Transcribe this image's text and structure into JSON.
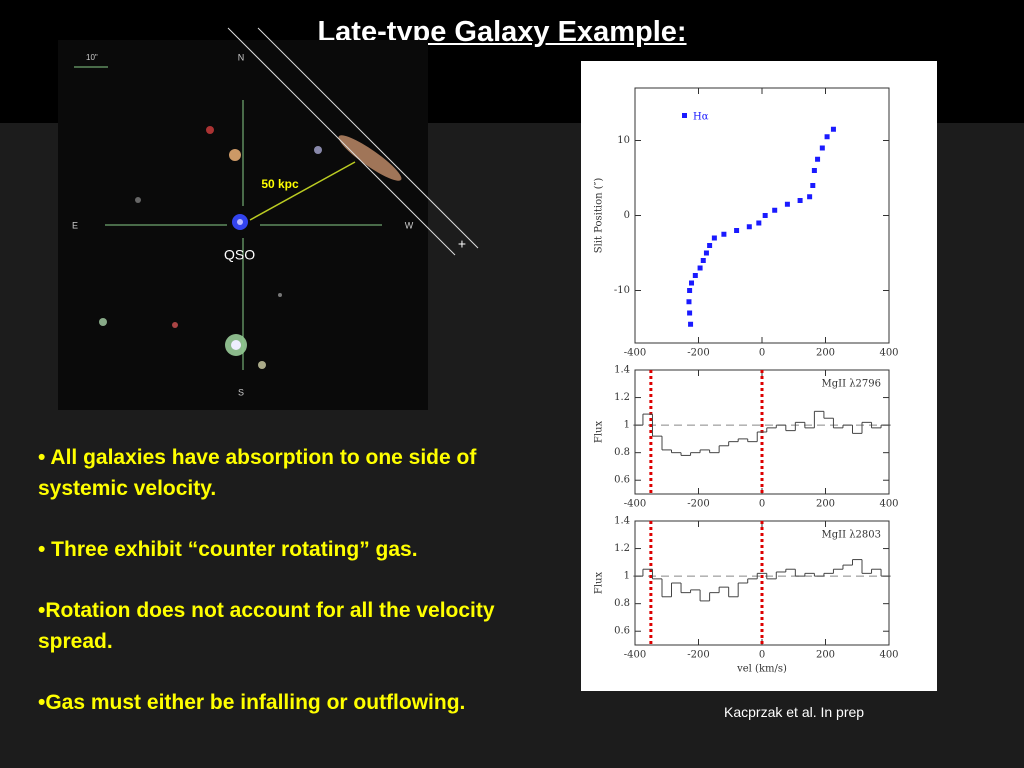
{
  "slide": {
    "title": "Late-type Galaxy Example:",
    "bullets": [
      "• All galaxies have absorption to one side of systemic velocity.",
      "• Three exhibit “counter rotating” gas.",
      "•Rotation does not account for all the velocity spread.",
      "•Gas must either be infalling or outflowing."
    ],
    "credit": "Kacprzak et al.  In prep"
  },
  "image": {
    "scale_label": "10\"",
    "north": "N",
    "east": "E",
    "west": "W",
    "south": "S",
    "distance_label": "50 kpc",
    "qso_label": "QSO"
  },
  "chart_data": [
    {
      "type": "scatter",
      "ylabel": "Slit Position (″)",
      "xlim": [
        -400,
        400
      ],
      "ylim": [
        -17,
        17
      ],
      "xticks": [
        -400,
        -200,
        0,
        200,
        400
      ],
      "yticks": [
        -10,
        0,
        10
      ],
      "series": [
        {
          "name": "Hα",
          "color": "#1a1aff",
          "x": [
            -225,
            -228,
            -230,
            -228,
            -222,
            -210,
            -195,
            -185,
            -175,
            -165,
            -150,
            -120,
            -80,
            -40,
            -10,
            10,
            40,
            80,
            120,
            150,
            160,
            165,
            175,
            190,
            205,
            225
          ],
          "values": [
            -14.5,
            -13,
            -11.5,
            -10,
            -9,
            -8,
            -7,
            -6,
            -5,
            -4,
            -3,
            -2.5,
            -2,
            -1.5,
            -1,
            0,
            0.7,
            1.5,
            2,
            2.5,
            4,
            6,
            7.5,
            9,
            10.5,
            11.5
          ]
        }
      ]
    },
    {
      "type": "step",
      "ylabel": "Flux",
      "annotation": "MgII λ2796",
      "xlim": [
        -400,
        400
      ],
      "ylim": [
        0.5,
        1.4
      ],
      "xticks": [
        -400,
        -200,
        0,
        200,
        400
      ],
      "yticks": [
        0.6,
        0.8,
        1,
        1.2,
        1.4
      ],
      "hline": 1,
      "vlines": [
        -350,
        0
      ],
      "vline_color": "#dd0000",
      "series": [
        {
          "color": "#444444",
          "x": [
            -390,
            -360,
            -330,
            -300,
            -270,
            -240,
            -210,
            -180,
            -150,
            -120,
            -90,
            -60,
            -30,
            0,
            30,
            60,
            90,
            120,
            150,
            180,
            210,
            240,
            270,
            300,
            330,
            360,
            390
          ],
          "values": [
            1.0,
            1.08,
            0.92,
            0.82,
            0.8,
            0.78,
            0.8,
            0.82,
            0.8,
            0.85,
            0.88,
            0.9,
            0.88,
            0.95,
            0.98,
            1.0,
            0.96,
            1.02,
            0.98,
            1.1,
            1.05,
            0.98,
            1.0,
            0.94,
            1.02,
            0.98,
            1.0
          ]
        }
      ]
    },
    {
      "type": "step",
      "ylabel": "Flux",
      "xlabel": "vel (km/s)",
      "annotation": "MgII λ2803",
      "xlim": [
        -400,
        400
      ],
      "ylim": [
        0.5,
        1.4
      ],
      "xticks": [
        -400,
        -200,
        0,
        200,
        400
      ],
      "yticks": [
        0.6,
        0.8,
        1,
        1.2,
        1.4
      ],
      "hline": 1,
      "vlines": [
        -350,
        0
      ],
      "vline_color": "#dd0000",
      "series": [
        {
          "color": "#444444",
          "x": [
            -390,
            -360,
            -330,
            -300,
            -270,
            -240,
            -210,
            -180,
            -150,
            -120,
            -90,
            -60,
            -30,
            0,
            30,
            60,
            90,
            120,
            150,
            180,
            210,
            240,
            270,
            300,
            330,
            360,
            390
          ],
          "values": [
            1.0,
            1.05,
            0.98,
            0.85,
            0.95,
            0.88,
            0.9,
            0.82,
            0.88,
            0.92,
            0.85,
            0.95,
            0.98,
            1.02,
            0.98,
            1.03,
            1.05,
            1.0,
            1.02,
            1.0,
            1.02,
            1.05,
            1.08,
            1.12,
            1.02,
            1.05,
            1.0
          ]
        }
      ]
    }
  ]
}
